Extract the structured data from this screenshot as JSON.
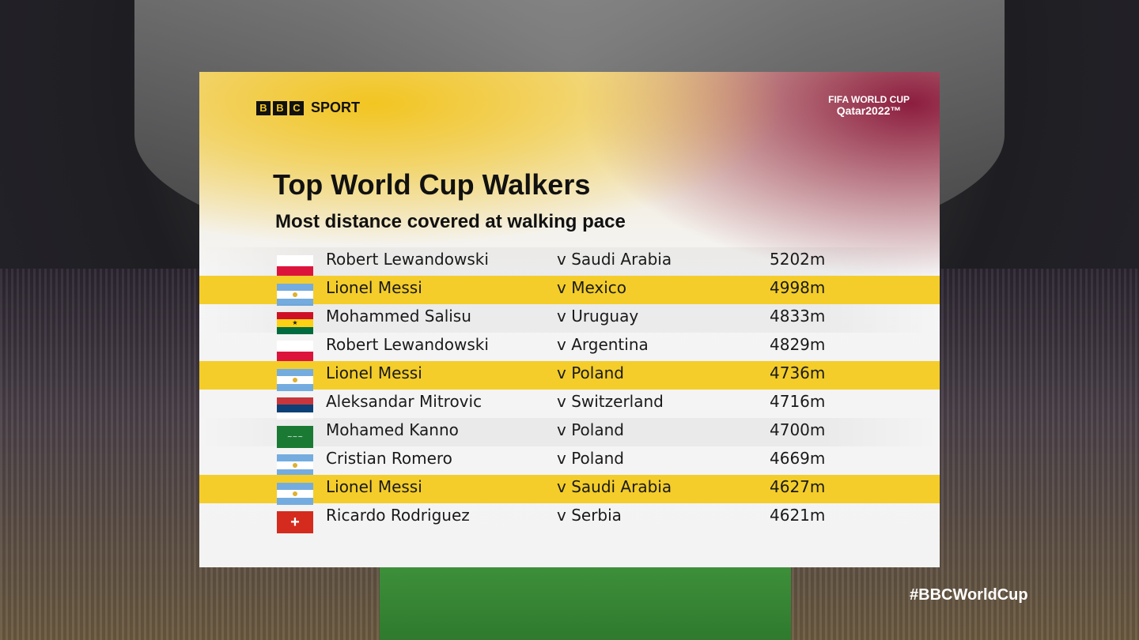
{
  "branding": {
    "bbc_letters": [
      "B",
      "B",
      "C"
    ],
    "bbc_sport": "SPORT",
    "fifa_line1": "FIFA WORLD CUP",
    "fifa_line2": "Qatar2022™"
  },
  "title": "Top World Cup Walkers",
  "subtitle": "Most distance covered at walking pace",
  "colors": {
    "highlight": "#f4cd2a",
    "yellow": "#f2c521",
    "maroon": "#8c1d3f"
  },
  "rows": [
    {
      "flag": "poland",
      "name": "Robert Lewandowski",
      "opponent": "v Saudi Arabia",
      "distance": "5202m",
      "highlight": false
    },
    {
      "flag": "argentina",
      "name": "Lionel Messi",
      "opponent": "v Mexico",
      "distance": "4998m",
      "highlight": true
    },
    {
      "flag": "ghana",
      "name": "Mohammed Salisu",
      "opponent": "v Uruguay",
      "distance": "4833m",
      "highlight": false
    },
    {
      "flag": "poland",
      "name": "Robert Lewandowski",
      "opponent": "v Argentina",
      "distance": "4829m",
      "highlight": false
    },
    {
      "flag": "argentina",
      "name": "Lionel Messi",
      "opponent": "v Poland",
      "distance": "4736m",
      "highlight": true
    },
    {
      "flag": "serbia",
      "name": "Aleksandar Mitrovic",
      "opponent": "v Switzerland",
      "distance": "4716m",
      "highlight": false
    },
    {
      "flag": "saudi-arabia",
      "name": "Mohamed Kanno",
      "opponent": "v Poland",
      "distance": "4700m",
      "highlight": false
    },
    {
      "flag": "argentina",
      "name": "Cristian Romero",
      "opponent": "v Poland",
      "distance": "4669m",
      "highlight": false
    },
    {
      "flag": "argentina",
      "name": "Lionel Messi",
      "opponent": "v Saudi Arabia",
      "distance": "4627m",
      "highlight": true
    },
    {
      "flag": "switzerland",
      "name": "Ricardo Rodriguez",
      "opponent": "v Serbia",
      "distance": "4621m",
      "highlight": false
    }
  ],
  "hashtag": "#BBCWorldCup"
}
